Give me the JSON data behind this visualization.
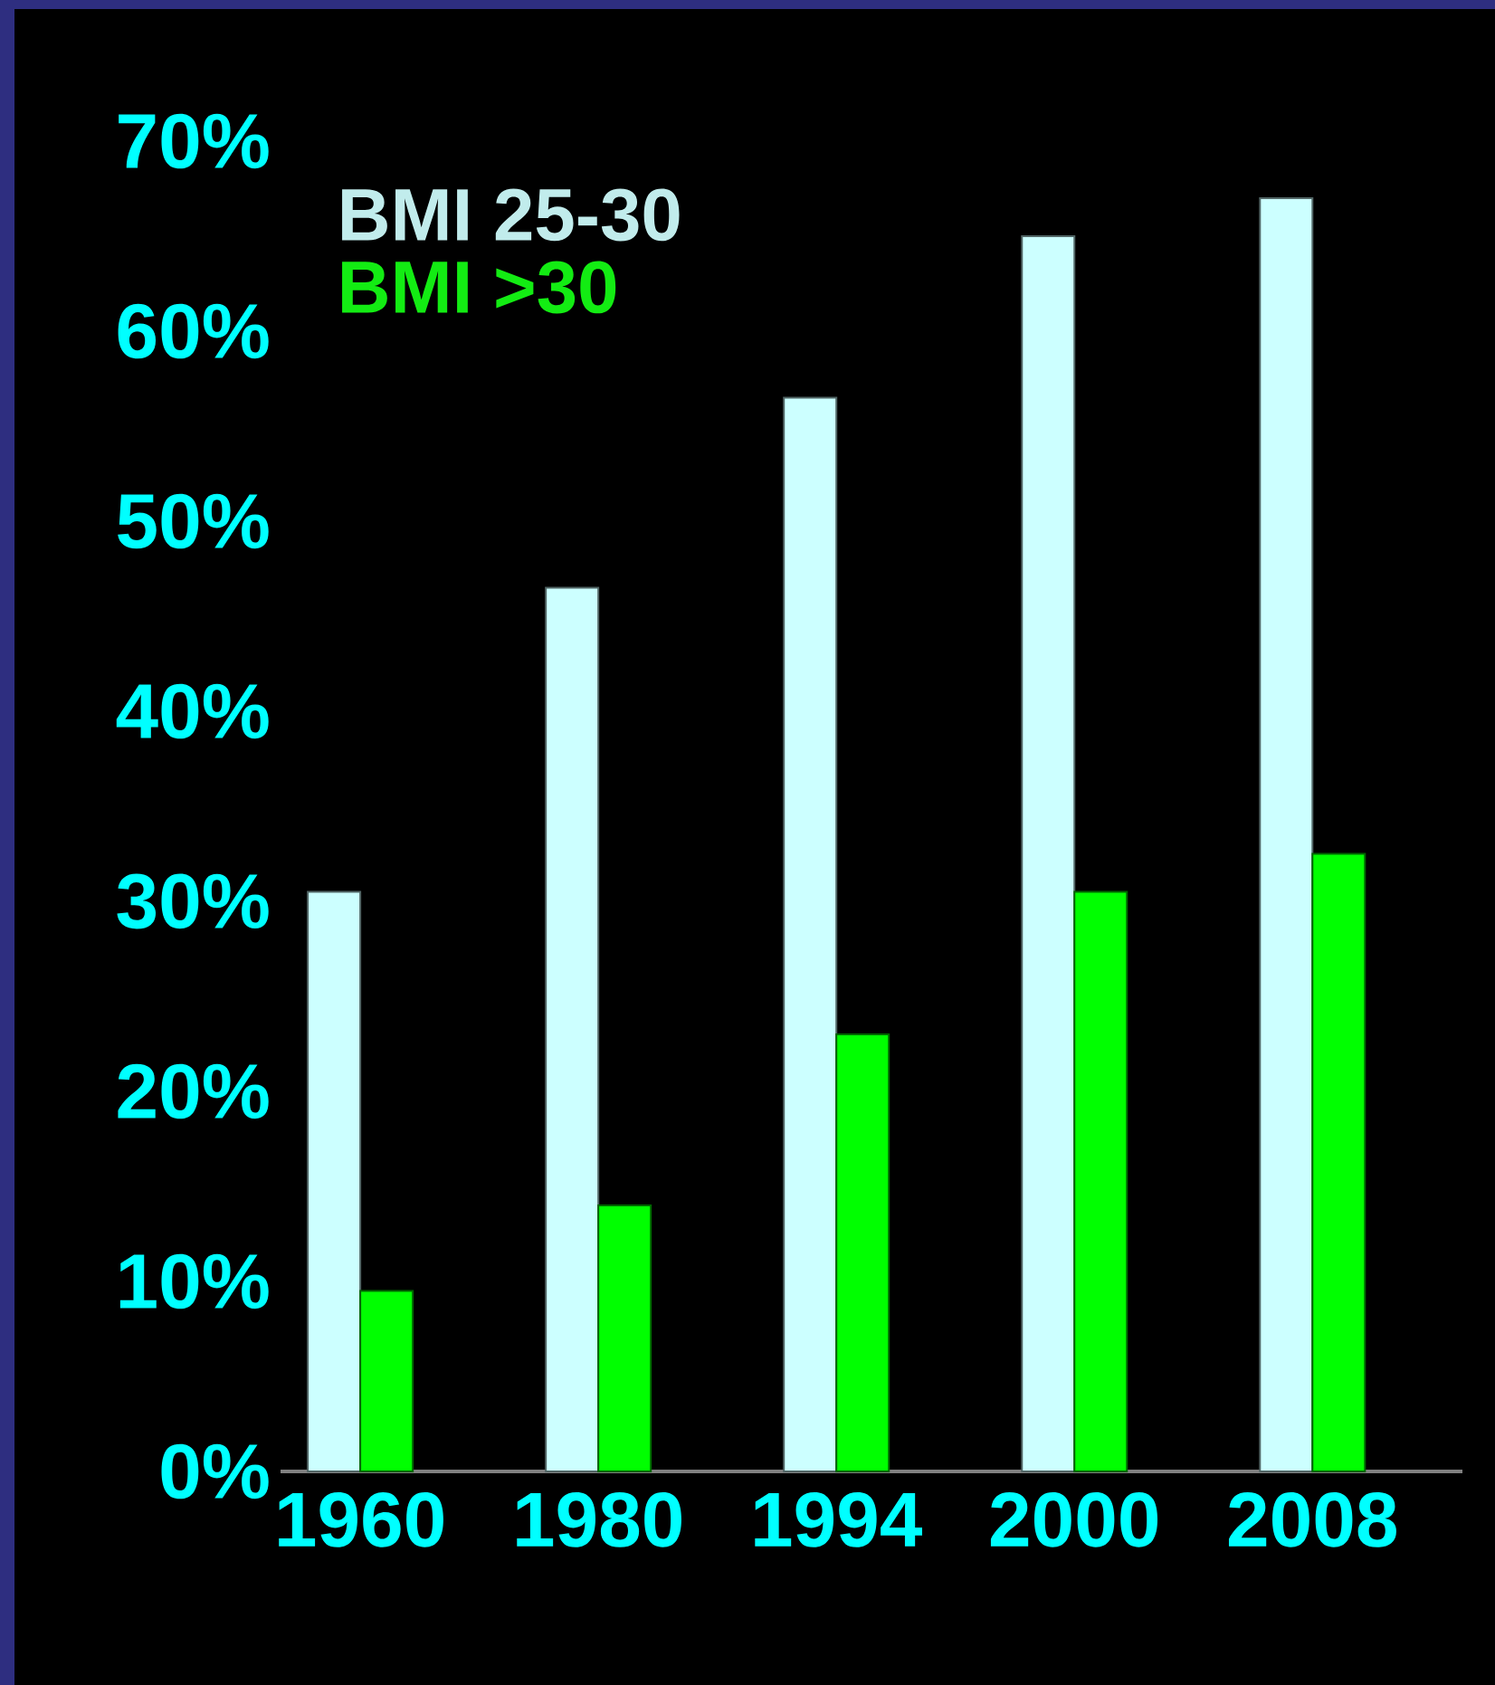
{
  "chart_data": {
    "type": "bar",
    "categories": [
      "1960",
      "1980",
      "1994",
      "2000",
      "2008"
    ],
    "series": [
      {
        "name": "BMI 25-30",
        "color": "#ccffff",
        "values": [
          30.5,
          46.5,
          56.5,
          65,
          67
        ]
      },
      {
        "name": "BMI >30",
        "color": "#00ff00",
        "values": [
          9.5,
          14,
          23,
          30.5,
          32.5
        ]
      }
    ],
    "ylim": [
      0,
      70
    ],
    "yticks": [
      {
        "value": 0,
        "label": "0%"
      },
      {
        "value": 10,
        "label": "10%"
      },
      {
        "value": 20,
        "label": "20%"
      },
      {
        "value": 30,
        "label": "30%"
      },
      {
        "value": 40,
        "label": "40%"
      },
      {
        "value": 50,
        "label": "50%"
      },
      {
        "value": 60,
        "label": "60%"
      },
      {
        "value": 70,
        "label": "70%"
      }
    ],
    "legend": "top left"
  }
}
